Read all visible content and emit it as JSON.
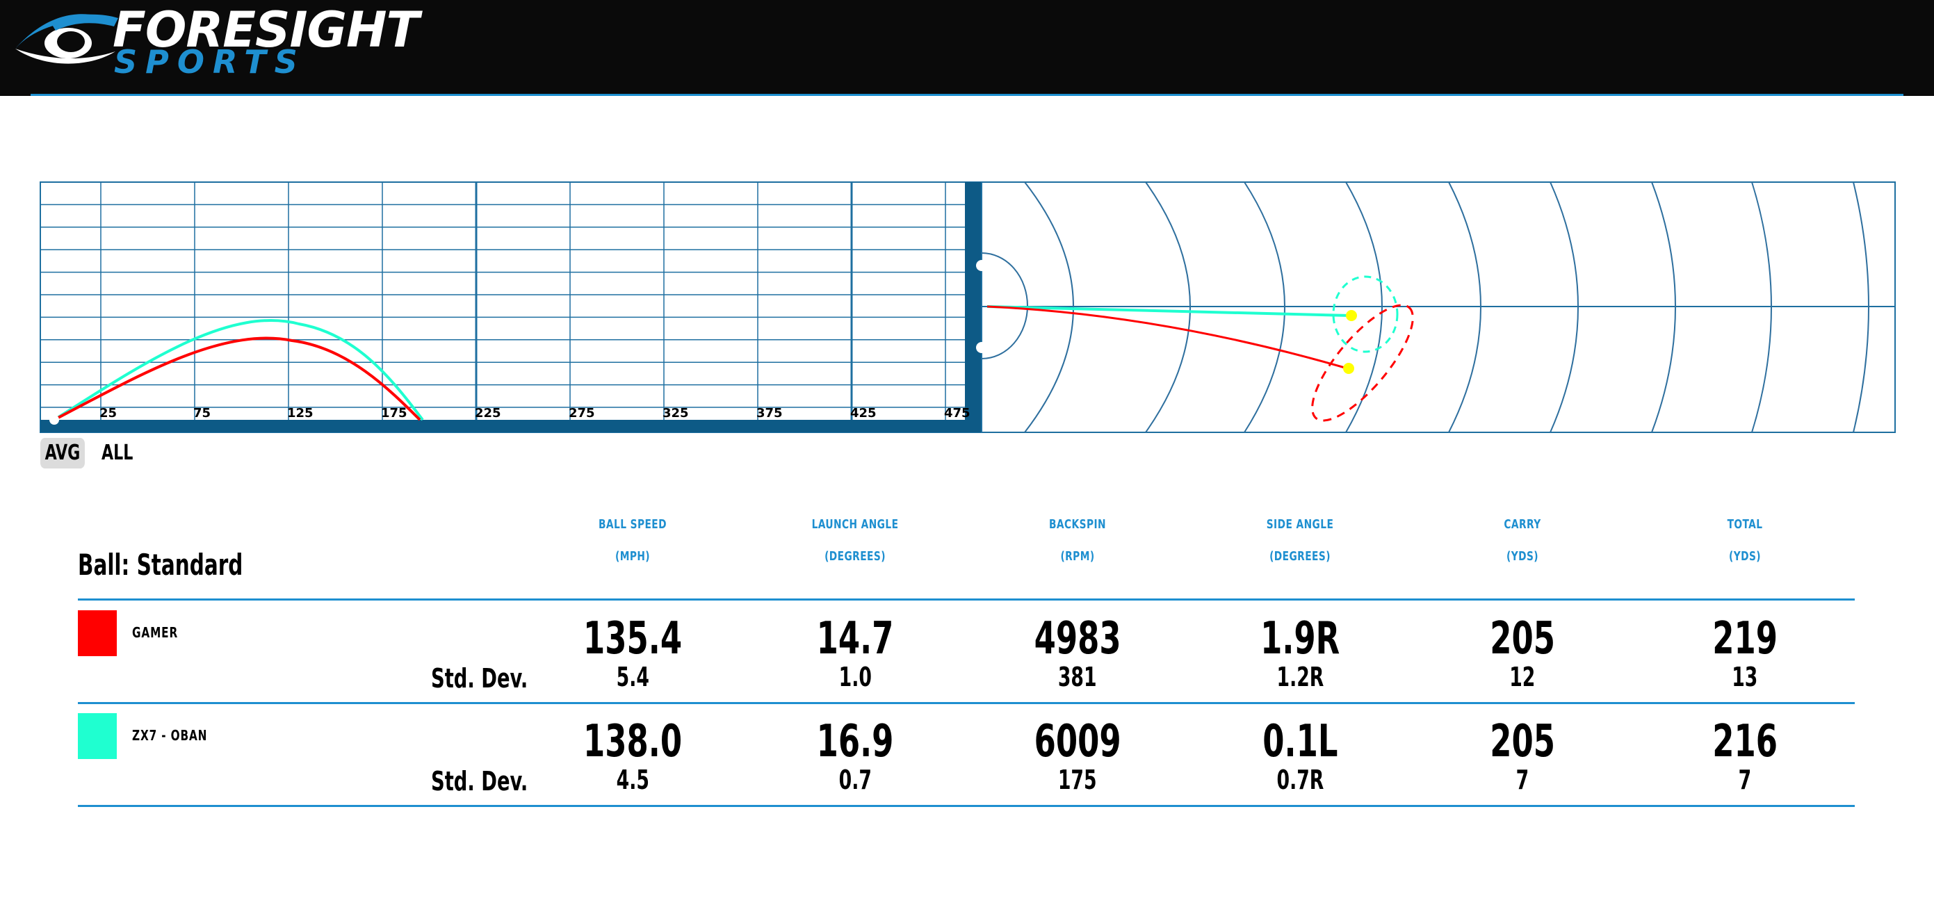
{
  "brand": {
    "name": "FORESIGHT",
    "sub": "SPORTS",
    "colors": {
      "header_bg": "#0a0a0a",
      "accent": "#1e8fd0"
    }
  },
  "view_toggle": {
    "options": [
      "AVG",
      "ALL"
    ],
    "selected": "AVG"
  },
  "ball_label": "Ball: Standard",
  "columns": [
    {
      "name": "BALL SPEED",
      "unit": "(MPH)"
    },
    {
      "name": "LAUNCH ANGLE",
      "unit": "(DEGREES)"
    },
    {
      "name": "BACKSPIN",
      "unit": "(RPM)"
    },
    {
      "name": "SIDE ANGLE",
      "unit": "(DEGREES)"
    },
    {
      "name": "CARRY",
      "unit": "(YDS)"
    },
    {
      "name": "TOTAL",
      "unit": "(YDS)"
    }
  ],
  "rows": [
    {
      "club": "GAMER",
      "color": "#ff0000",
      "values": [
        "135.4",
        "14.7",
        "4983",
        "1.9R",
        "205",
        "219"
      ],
      "std_label": "Std. Dev.",
      "std": [
        "5.4",
        "1.0",
        "381",
        "1.2R",
        "12",
        "13"
      ]
    },
    {
      "club": "ZX7 - OBAN",
      "color": "#1fffd0",
      "values": [
        "138.0",
        "16.9",
        "6009",
        "0.1L",
        "205",
        "216"
      ],
      "std_label": "Std. Dev.",
      "std": [
        "4.5",
        "0.7",
        "175",
        "0.7R",
        "7",
        "7"
      ]
    }
  ],
  "chart_data": {
    "type": "line",
    "xlabel": "",
    "ylabel": "",
    "x_ticks": [
      "25",
      "75",
      "125",
      "175",
      "225",
      "275",
      "325",
      "375",
      "425",
      "475"
    ],
    "xlim": [
      0,
      500
    ],
    "series": [
      {
        "color": "#ff0000",
        "carry": 205,
        "apex_x": 125
      },
      {
        "color": "#1fffd0",
        "carry": 205,
        "apex_x": 125
      }
    ]
  }
}
